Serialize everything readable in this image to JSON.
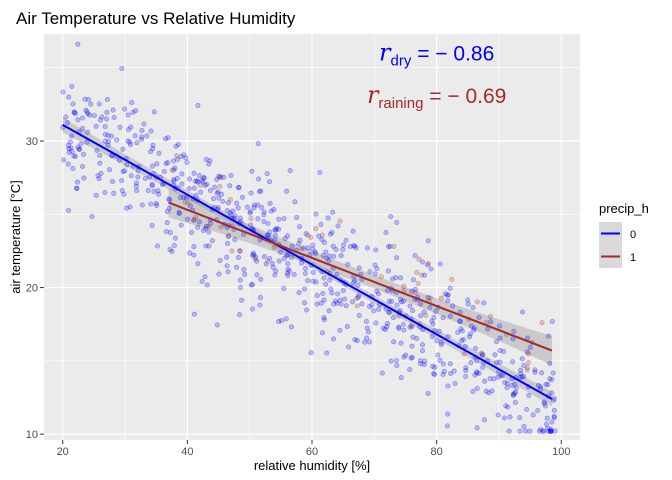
{
  "chart_data": {
    "type": "scatter",
    "title": "Air Temperature vs Relative Humidity",
    "xlabel": "relative humidity [%]",
    "ylabel": "air temperature [°C]",
    "xlim": [
      17,
      103
    ],
    "ylim": [
      9.6,
      37.3
    ],
    "xticks": [
      20,
      40,
      60,
      80,
      100
    ],
    "xtick_labels": [
      "20",
      "40",
      "60",
      "80",
      "100"
    ],
    "yticks": [
      10,
      20,
      30
    ],
    "ytick_labels": [
      "10",
      "20",
      "30"
    ],
    "grid": true,
    "legend": {
      "title": "precip_h",
      "position": "right",
      "entries": [
        {
          "label": "0",
          "color": "#0000ff"
        },
        {
          "label": "1",
          "color": "#a52a2a"
        }
      ]
    },
    "series": [
      {
        "name": "0",
        "color": "#0000ff",
        "n_points": 760,
        "x_range": [
          20,
          99
        ],
        "trend": {
          "x0": 20,
          "y0": 31.1,
          "x1": 98.5,
          "y1": 12.4
        },
        "correlation": -0.86
      },
      {
        "name": "1",
        "color": "#a52a2a",
        "n_points": 60,
        "x_range": [
          37,
          98
        ],
        "trend": {
          "x0": 37,
          "y0": 25.8,
          "x1": 98.5,
          "y1": 15.7
        },
        "correlation": -0.69
      }
    ],
    "annotations": [
      {
        "symbol": "r",
        "subscript": "dry",
        "value": " = − 0.86",
        "color": "#0000ff",
        "x": 80,
        "y": 35.5
      },
      {
        "symbol": "r",
        "subscript": "raining",
        "value": " = − 0.69",
        "color": "#a52a2a",
        "x": 80,
        "y": 32.6
      }
    ]
  }
}
